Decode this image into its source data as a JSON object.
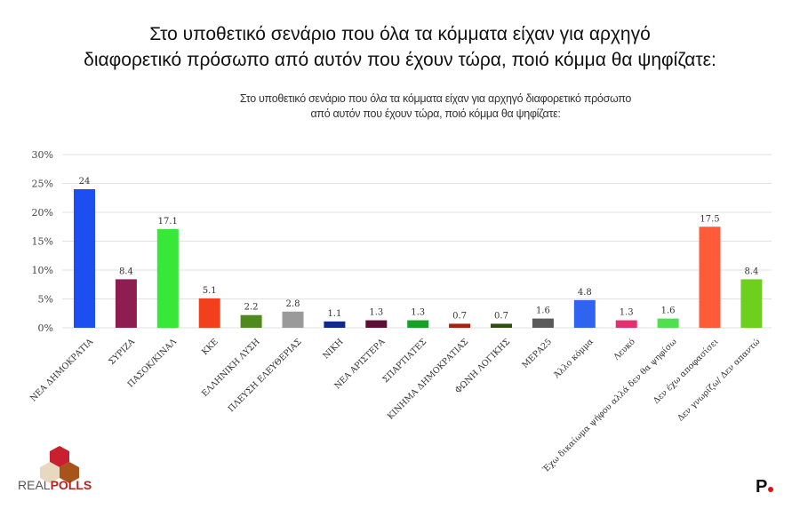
{
  "header": {
    "title_line1": "Στο υποθετικό σενάριο που όλα τα κόμματα είχαν για αρχηγό",
    "title_line2": "διαφορετικό πρόσωπο από αυτόν που έχουν τώρα, ποιό κόμμα θα ψηφίζατε:"
  },
  "chart_data": {
    "type": "bar",
    "title": "Στο υποθετικό σενάριο που όλα τα κόμματα είχαν για αρχηγό διαφορετικό πρόσωπο από αυτόν που έχουν τώρα, ποιό κόμμα θα ψηφίζατε:",
    "title_line1": "Στο υποθετικό σενάριο που όλα τα κόμματα είχαν για αρχηγό διαφορετικό πρόσωπο",
    "title_line2": "από αυτόν που έχουν τώρα, ποιό κόμμα θα ψηφίζατε:",
    "categories": [
      "ΝΕΑ ΔΗΜΟΚΡΑΤΙΑ",
      "ΣΥΡΙΖΑ",
      "ΠΑΣΟΚ/ΚΙΝΑΛ",
      "ΚΚΕ",
      "ΕΛΛΗΝΙΚΗ ΛΥΣΗ",
      "ΠΛΕΥΣΗ ΕΛΕΥΘΕΡΙΑΣ",
      "ΝΙΚΗ",
      "ΝΕΑ ΑΡΙΣΤΕΡΑ",
      "ΣΠΑΡΤΙΑΤΕΣ",
      "ΚΙΝΗΜΑ ΔΗΜΟΚΡΑΤΙΑΣ",
      "ΦΩΝΗ ΛΟΓΙΚΗΣ",
      "ΜΕΡΑ25",
      "Άλλο κόμμα",
      "Λευκό",
      "Έχω δικαίωμα ψήφου αλλά δεν θα ψηφίσω",
      "Δεν έχω αποφασίσει",
      "Δεν γνωρίζω/ Δεν απαντώ"
    ],
    "values": [
      24,
      8.4,
      17.1,
      5.1,
      2.2,
      2.8,
      1.1,
      1.3,
      1.3,
      0.7,
      0.7,
      1.6,
      4.8,
      1.3,
      1.6,
      17.5,
      8.4
    ],
    "colors": [
      "#1c4ef2",
      "#8e1d52",
      "#38e838",
      "#f2401c",
      "#4f8a1e",
      "#9a9a9a",
      "#102a8c",
      "#5c0f34",
      "#16a02a",
      "#a8200f",
      "#2f4f12",
      "#5a5a5a",
      "#2f63f0",
      "#e3306e",
      "#4ee04e",
      "#ff5a3a",
      "#6fcf1f"
    ],
    "yticks": [
      "0%",
      "5%",
      "10%",
      "15%",
      "20%",
      "25%",
      "30%"
    ],
    "ylim": [
      0,
      30
    ],
    "grid": true
  },
  "logos": {
    "realpolls": "REALPOLLS",
    "p": "P"
  }
}
